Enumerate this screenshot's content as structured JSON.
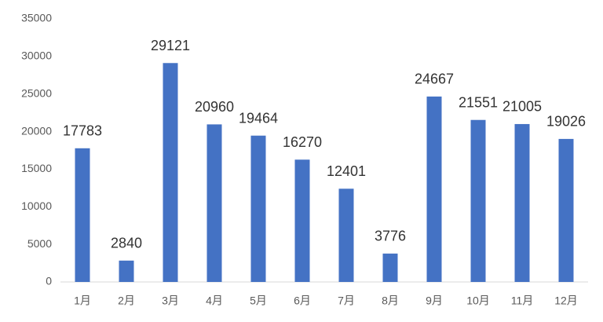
{
  "chart_data": {
    "type": "bar",
    "categories": [
      "1月",
      "2月",
      "3月",
      "4月",
      "5月",
      "6月",
      "7月",
      "8月",
      "9月",
      "10月",
      "11月",
      "12月"
    ],
    "values": [
      17783,
      2840,
      29121,
      20960,
      19464,
      16270,
      12401,
      3776,
      24667,
      21551,
      21005,
      19026
    ],
    "color": "#4472c4",
    "ylim": [
      0,
      35000
    ],
    "yticks": [
      0,
      5000,
      10000,
      15000,
      20000,
      25000,
      30000,
      35000
    ],
    "grid": false
  }
}
